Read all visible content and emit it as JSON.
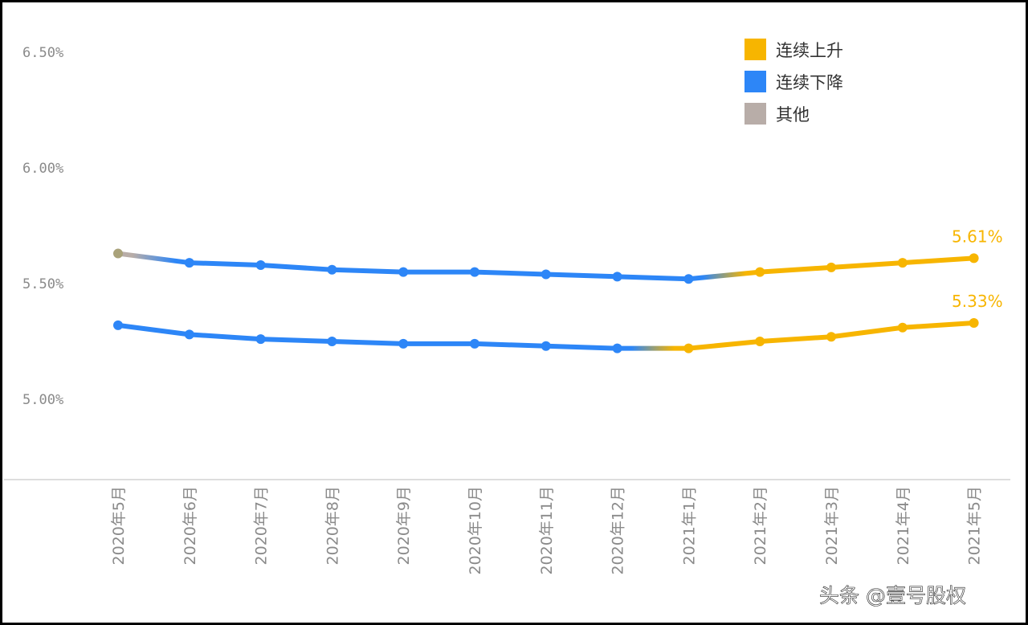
{
  "chart_data": {
    "type": "line",
    "categories": [
      "2020年5月",
      "2020年6月",
      "2020年7月",
      "2020年8月",
      "2020年9月",
      "2020年10月",
      "2020年11月",
      "2020年12月",
      "2021年1月",
      "2021年2月",
      "2021年3月",
      "2021年4月",
      "2021年5月"
    ],
    "series": [
      {
        "values": [
          5.63,
          5.59,
          5.58,
          5.56,
          5.55,
          5.55,
          5.54,
          5.53,
          5.52,
          5.55,
          5.57,
          5.59,
          5.61
        ],
        "segment_status": [
          "其他",
          "连续下降",
          "连续下降",
          "连续下降",
          "连续下降",
          "连续下降",
          "连续下降",
          "连续下降",
          "连续下降",
          "连续上升",
          "连续上升",
          "连续上升",
          "连续上升"
        ],
        "end_label": "5.61%"
      },
      {
        "values": [
          5.32,
          5.28,
          5.26,
          5.25,
          5.24,
          5.24,
          5.23,
          5.22,
          5.22,
          5.25,
          5.27,
          5.31,
          5.33
        ],
        "segment_status": [
          "连续下降",
          "连续下降",
          "连续下降",
          "连续下降",
          "连续下降",
          "连续下降",
          "连续下降",
          "连续下降",
          "连续上升",
          "连续上升",
          "连续上升",
          "连续上升",
          "连续上升"
        ],
        "end_label": "5.33%"
      }
    ],
    "yticks": [
      "6.50%",
      "6.00%",
      "5.50%",
      "5.00%"
    ],
    "ytick_values": [
      6.5,
      6.0,
      5.5,
      5.0
    ],
    "ylim": [
      4.65,
      6.6
    ],
    "grid": false,
    "legend_position": "top-right",
    "legend": [
      {
        "label": "连续上升",
        "color": "#F7B500"
      },
      {
        "label": "连续下降",
        "color": "#2D86F7"
      },
      {
        "label": "其他",
        "color": "#B8ADA8"
      }
    ]
  },
  "watermark": "头条 @壹号股权"
}
